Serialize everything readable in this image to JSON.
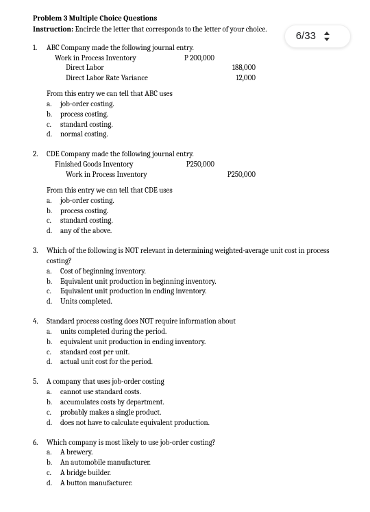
{
  "page_indicator": "6/33",
  "header": {
    "title": "Problem 3  Multiple Choice Questions",
    "instruction_label": "Instruction:",
    "instruction_text": " Encircle the letter that corresponds to the letter of your choice."
  },
  "questions": [
    {
      "num": "1.",
      "stem": "ABC Company made the following journal entry.",
      "journal": [
        {
          "label": "Work in Process Inventory",
          "indent": 1,
          "col1": "P 200,000",
          "col2": ""
        },
        {
          "label": "Direct Labor",
          "indent": 2,
          "col1": "",
          "col2": "188,000"
        },
        {
          "label": "Direct Labor Rate Variance",
          "indent": 2,
          "col1": "",
          "col2": "12,000"
        }
      ],
      "sub": "From this entry we can tell that ABC uses",
      "opts": [
        {
          "l": "a.",
          "t": "job-order costing."
        },
        {
          "l": "b.",
          "t": "process costing."
        },
        {
          "l": "c.",
          "t": "standard costing."
        },
        {
          "l": "d.",
          "t": "normal costing."
        }
      ]
    },
    {
      "num": "2.",
      "stem": "CDE Company made the following journal entry.",
      "journal": [
        {
          "label": "Finished Goods Inventory",
          "indent": 1,
          "col1": "P250,000",
          "col2": ""
        },
        {
          "label": "Work in Process Inventory",
          "indent": 2,
          "col1": "",
          "col2": "P250,000"
        }
      ],
      "sub": "From this entry we can tell that CDE uses",
      "opts": [
        {
          "l": "a.",
          "t": "job-order costing."
        },
        {
          "l": "b.",
          "t": "process costing."
        },
        {
          "l": "c.",
          "t": "standard costing."
        },
        {
          "l": "d.",
          "t": "any of the above."
        }
      ]
    },
    {
      "num": "3.",
      "stem": "Which of the following is NOT relevant in determining weighted-average unit cost in process costing?",
      "opts": [
        {
          "l": "a.",
          "t": "Cost of beginning inventory."
        },
        {
          "l": "b.",
          "t": "Equivalent unit production in beginning inventory."
        },
        {
          "l": "c.",
          "t": "Equivalent unit production in ending inventory."
        },
        {
          "l": "d.",
          "t": "Units completed."
        }
      ]
    },
    {
      "num": "4.",
      "stem": "Standard process costing does NOT require information about",
      "opts": [
        {
          "l": "a.",
          "t": "units completed during the period."
        },
        {
          "l": "b.",
          "t": "equivalent unit production in ending inventory."
        },
        {
          "l": "c.",
          "t": "standard cost per unit."
        },
        {
          "l": "d.",
          "t": "actual unit cost for the period."
        }
      ]
    },
    {
      "num": "5.",
      "stem": " A company that uses job-order costing",
      "opts": [
        {
          "l": "a.",
          "t": "cannot use standard costs."
        },
        {
          "l": "b.",
          "t": "accumulates costs by department."
        },
        {
          "l": "c.",
          "t": "probably makes a single product."
        },
        {
          "l": "d.",
          "t": "does not have to calculate equivalent production."
        }
      ]
    },
    {
      "num": "6.",
      "stem": "Which company is most likely to use job-order costing?",
      "opts": [
        {
          "l": "a.",
          "t": " A brewery."
        },
        {
          "l": "b.",
          "t": "An automobile manufacturer."
        },
        {
          "l": "c.",
          "t": "A bridge builder."
        },
        {
          "l": "d.",
          "t": "A button manufacturer."
        }
      ]
    }
  ]
}
